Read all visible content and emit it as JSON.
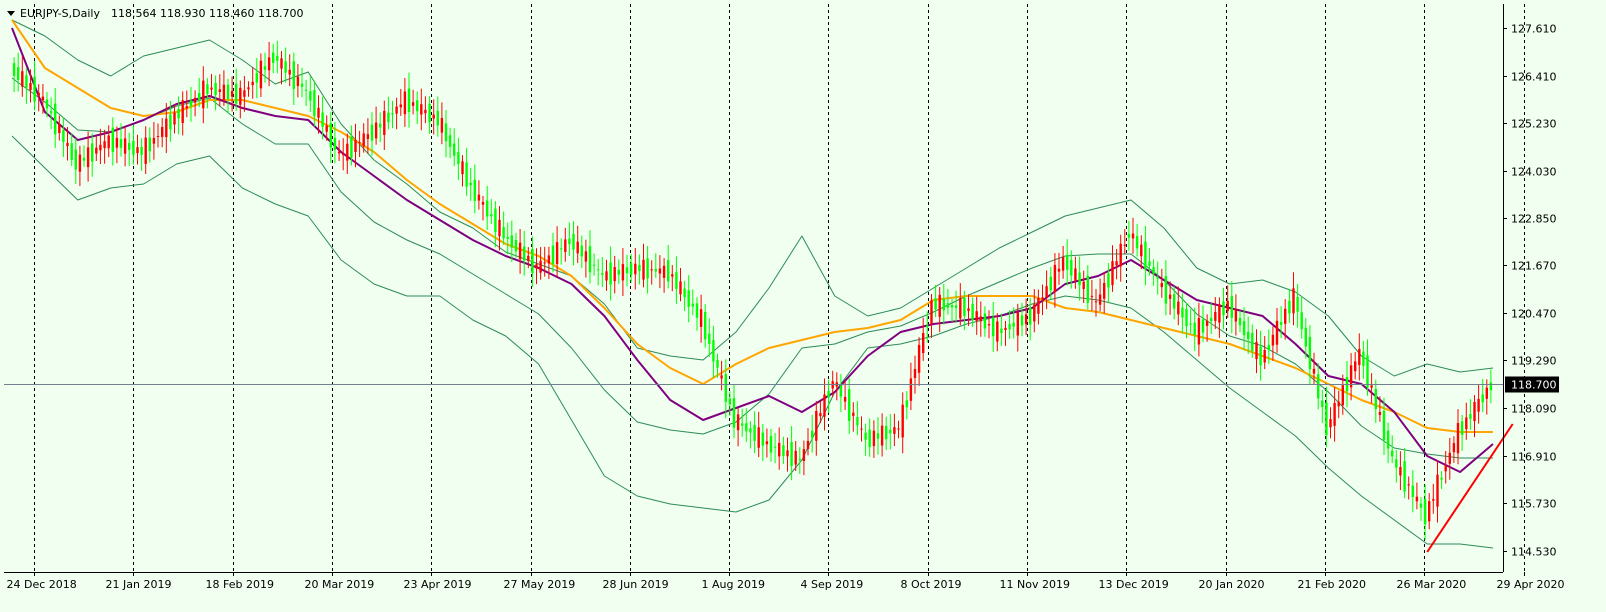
{
  "header": {
    "symbol": "EURJPY-S,Daily",
    "ohlc": "118.564 118.930 118.460 118.700"
  },
  "colors": {
    "background": "#f0fff0",
    "bull": "#ff0000",
    "bear": "#00ff00",
    "bollinger": "#2e8b57",
    "ma_fast": "#800080",
    "ma_slow": "#ffa500",
    "trendline": "#ff0000",
    "price_line": "#708090",
    "price_label_bg": "#000000"
  },
  "chart_data": {
    "type": "candlestick",
    "ylim": [
      114.0,
      128.2
    ],
    "y_ticks": [
      "127.610",
      "126.410",
      "125.230",
      "124.030",
      "122.850",
      "121.670",
      "120.470",
      "119.290",
      "118.090",
      "116.910",
      "115.730",
      "114.530"
    ],
    "current_price": "118.700",
    "date_labels": [
      "24 Dec 2018",
      "21 Jan 2019",
      "18 Feb 2019",
      "20 Mar 2019",
      "23 Apr 2019",
      "27 May 2019",
      "28 Jun 2019",
      "1 Aug 2019",
      "4 Sep 2019",
      "8 Oct 2019",
      "11 Nov 2019",
      "13 Dec 2019",
      "20 Jan 2020",
      "21 Feb 2020",
      "26 Mar 2020",
      "29 Apr 2020"
    ],
    "closes": [
      126.6,
      125.8,
      124.2,
      124.8,
      124.5,
      125.4,
      126.1,
      125.9,
      126.9,
      126.0,
      124.4,
      125.0,
      125.8,
      125.3,
      123.6,
      122.4,
      121.6,
      122.3,
      121.4,
      121.6,
      121.5,
      120.3,
      117.8,
      117.2,
      116.8,
      118.8,
      117.3,
      117.6,
      120.7,
      120.6,
      120.0,
      120.4,
      121.8,
      120.7,
      122.5,
      121.1,
      120.0,
      120.7,
      119.3,
      120.9,
      117.6,
      119.5,
      116.8,
      115.4,
      117.5,
      118.7
    ],
    "bb_upper": [
      127.8,
      127.4,
      126.8,
      126.4,
      126.9,
      127.1,
      127.3,
      126.8,
      126.2,
      126.5,
      125.2,
      124.3,
      123.7,
      123.0,
      122.6,
      122.0,
      121.7,
      121.4,
      120.7,
      119.6,
      119.4,
      119.3,
      120.0,
      121.1,
      122.4,
      120.9,
      120.4,
      120.6,
      121.1,
      121.6,
      122.1,
      122.5,
      122.9,
      123.1,
      123.3,
      122.6,
      121.6,
      121.2,
      121.3,
      121.0,
      120.4,
      119.4,
      118.9,
      119.2,
      119.0,
      119.1
    ],
    "bb_lower": [
      124.9,
      124.1,
      123.3,
      123.6,
      123.7,
      124.2,
      124.4,
      123.6,
      123.2,
      122.9,
      121.8,
      121.2,
      120.9,
      120.9,
      120.3,
      119.9,
      119.2,
      117.8,
      116.4,
      115.9,
      115.7,
      115.6,
      115.5,
      115.8,
      116.8,
      118.5,
      119.6,
      119.7,
      119.9,
      120.2,
      120.4,
      120.7,
      120.9,
      120.8,
      120.6,
      120.0,
      119.3,
      118.6,
      118.0,
      117.4,
      116.6,
      115.9,
      115.3,
      114.7,
      114.7,
      114.6
    ],
    "ma_fast": [
      127.6,
      125.5,
      124.8,
      125.0,
      125.3,
      125.7,
      125.9,
      125.6,
      125.4,
      125.3,
      124.5,
      123.9,
      123.3,
      122.8,
      122.3,
      121.9,
      121.6,
      121.2,
      120.4,
      119.3,
      118.3,
      117.8,
      118.1,
      118.4,
      118.0,
      118.5,
      119.4,
      120.0,
      120.2,
      120.3,
      120.4,
      120.6,
      121.2,
      121.4,
      121.8,
      121.3,
      120.8,
      120.6,
      120.4,
      119.7,
      118.9,
      118.7,
      118.0,
      116.9,
      116.5,
      117.2
    ],
    "ma_slow": [
      127.8,
      126.6,
      126.1,
      125.6,
      125.4,
      125.5,
      125.8,
      125.8,
      125.6,
      125.4,
      125.0,
      124.5,
      123.8,
      123.2,
      122.7,
      122.2,
      121.9,
      121.4,
      120.6,
      119.7,
      119.1,
      118.7,
      119.2,
      119.6,
      119.8,
      120.0,
      120.1,
      120.3,
      120.8,
      120.9,
      120.9,
      120.9,
      120.6,
      120.5,
      120.3,
      120.1,
      119.9,
      119.7,
      119.4,
      119.1,
      118.7,
      118.3,
      118.0,
      117.6,
      117.5,
      117.5
    ],
    "trendline": [
      [
        43.0,
        114.5
      ],
      [
        45.6,
        117.7
      ]
    ],
    "grid": "vertical-dotted"
  }
}
